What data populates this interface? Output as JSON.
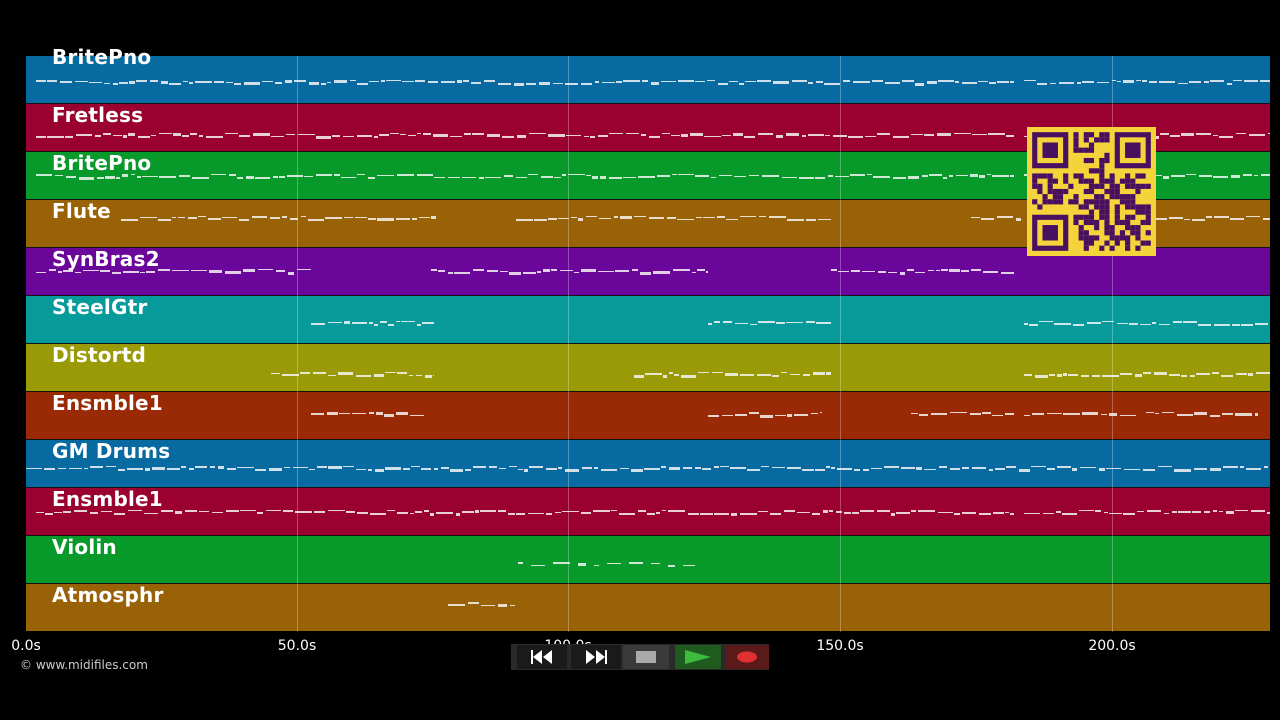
{
  "tracks": [
    {
      "name": "BritePno",
      "color": "#076aa1"
    },
    {
      "name": "Fretless",
      "color": "#9a0030"
    },
    {
      "name": "BritePno",
      "color": "#079a2b"
    },
    {
      "name": "Flute",
      "color": "#9a6206"
    },
    {
      "name": "SynBras2",
      "color": "#6a079a"
    },
    {
      "name": "SteelGtr",
      "color": "#079a9a"
    },
    {
      "name": "Distortd",
      "color": "#9a9a06"
    },
    {
      "name": "Ensmble1",
      "color": "#9a2a06"
    },
    {
      "name": "GM Drums",
      "color": "#076aa1"
    },
    {
      "name": "Ensmble1",
      "color": "#9a0030"
    },
    {
      "name": "Violin",
      "color": "#079a2b"
    },
    {
      "name": "Atmosphr",
      "color": "#9a6206"
    }
  ],
  "timeline": {
    "ticks": [
      "0.0s",
      "50.0s",
      "100.0s",
      "150.0s",
      "200.0s"
    ]
  },
  "credit": "© www.midifiles.com",
  "controls": {
    "rewind": "rewind-icon",
    "fast_forward": "fast-forward-icon",
    "stop": "stop-icon",
    "play": "play-icon",
    "record": "record-icon",
    "play_color": "#3dbb3d",
    "record_color": "#e03030"
  },
  "qr_code": {
    "label": "qr-code",
    "color": "#f4d43a",
    "fg": "#4a1060"
  }
}
